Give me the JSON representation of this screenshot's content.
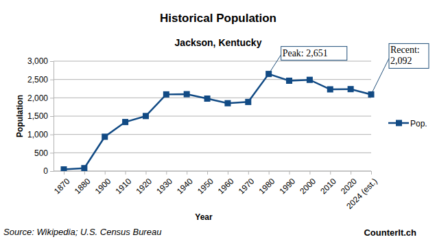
{
  "chart_data": {
    "type": "line",
    "title": "Historical Population",
    "subtitle": "Jackson, Kentucky",
    "x_label": "Year",
    "y_label": "Population",
    "categories": [
      "1870",
      "1880",
      "1900",
      "1910",
      "1920",
      "1930",
      "1940",
      "1950",
      "1960",
      "1970",
      "1980",
      "1990",
      "2000",
      "2010",
      "2020",
      "2024 (est.)"
    ],
    "series": [
      {
        "name": "Pop.",
        "color": "#114a84",
        "marker": "square",
        "line_style": "solid",
        "values": [
          46,
          81,
          938,
          1339,
          1503,
          2093,
          2099,
          1978,
          1852,
          1887,
          2651,
          2466,
          2490,
          2231,
          2237,
          2092
        ]
      }
    ],
    "ylim": [
      0,
      3000
    ],
    "yticks": [
      0,
      500,
      {
        "value": 1000,
        "label": "1,000"
      },
      {
        "value": 1500,
        "label": "1,500"
      },
      {
        "value": 2000,
        "label": "2,000"
      },
      {
        "value": 2500,
        "label": "2,500"
      },
      {
        "value": 3000,
        "label": "3,000"
      }
    ],
    "grid": true,
    "legend": "right",
    "annotations": [
      {
        "text": [
          "Peak: 2,651"
        ],
        "x": "1980",
        "y": 2651
      },
      {
        "text": [
          "Recent:",
          "2,092"
        ],
        "x": "2024 (est.)",
        "y": 2092
      }
    ],
    "source": "Source: Wikipedia; U.S. Census Bureau",
    "credit": "CounterIt.ch"
  }
}
